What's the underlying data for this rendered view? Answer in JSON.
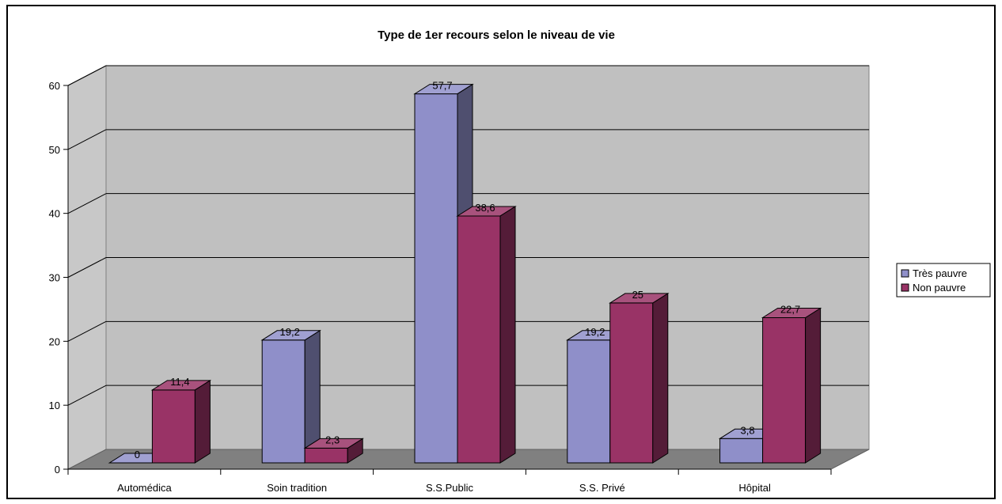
{
  "chart_data": {
    "type": "bar",
    "title": "Type de 1er recours selon le niveau de vie",
    "xlabel": "",
    "ylabel": "",
    "categories": [
      "Automédica",
      "Soin tradition",
      "S.S.Public",
      "S.S. Privé",
      "Hôpital"
    ],
    "series": [
      {
        "name": "Très pauvre",
        "values": [
          0,
          19.2,
          57.7,
          19.2,
          3.8
        ],
        "labels": [
          "0",
          "19,2",
          "57,7",
          "19,2",
          "3,8"
        ]
      },
      {
        "name": "Non pauvre",
        "values": [
          11.4,
          2.3,
          38.6,
          25,
          22.7
        ],
        "labels": [
          "11,4",
          "2,3",
          "38,6",
          "25",
          "22,7"
        ]
      }
    ],
    "ylim": [
      0,
      60
    ],
    "yticks": [
      "0",
      "10",
      "20",
      "30",
      "40",
      "50",
      "60"
    ],
    "grid": true,
    "legend": "right",
    "style": "3d",
    "colors": {
      "series": [
        "#8f8fc9",
        "#993366"
      ],
      "wall": "#c0c0c0",
      "floor": "#808080"
    }
  }
}
